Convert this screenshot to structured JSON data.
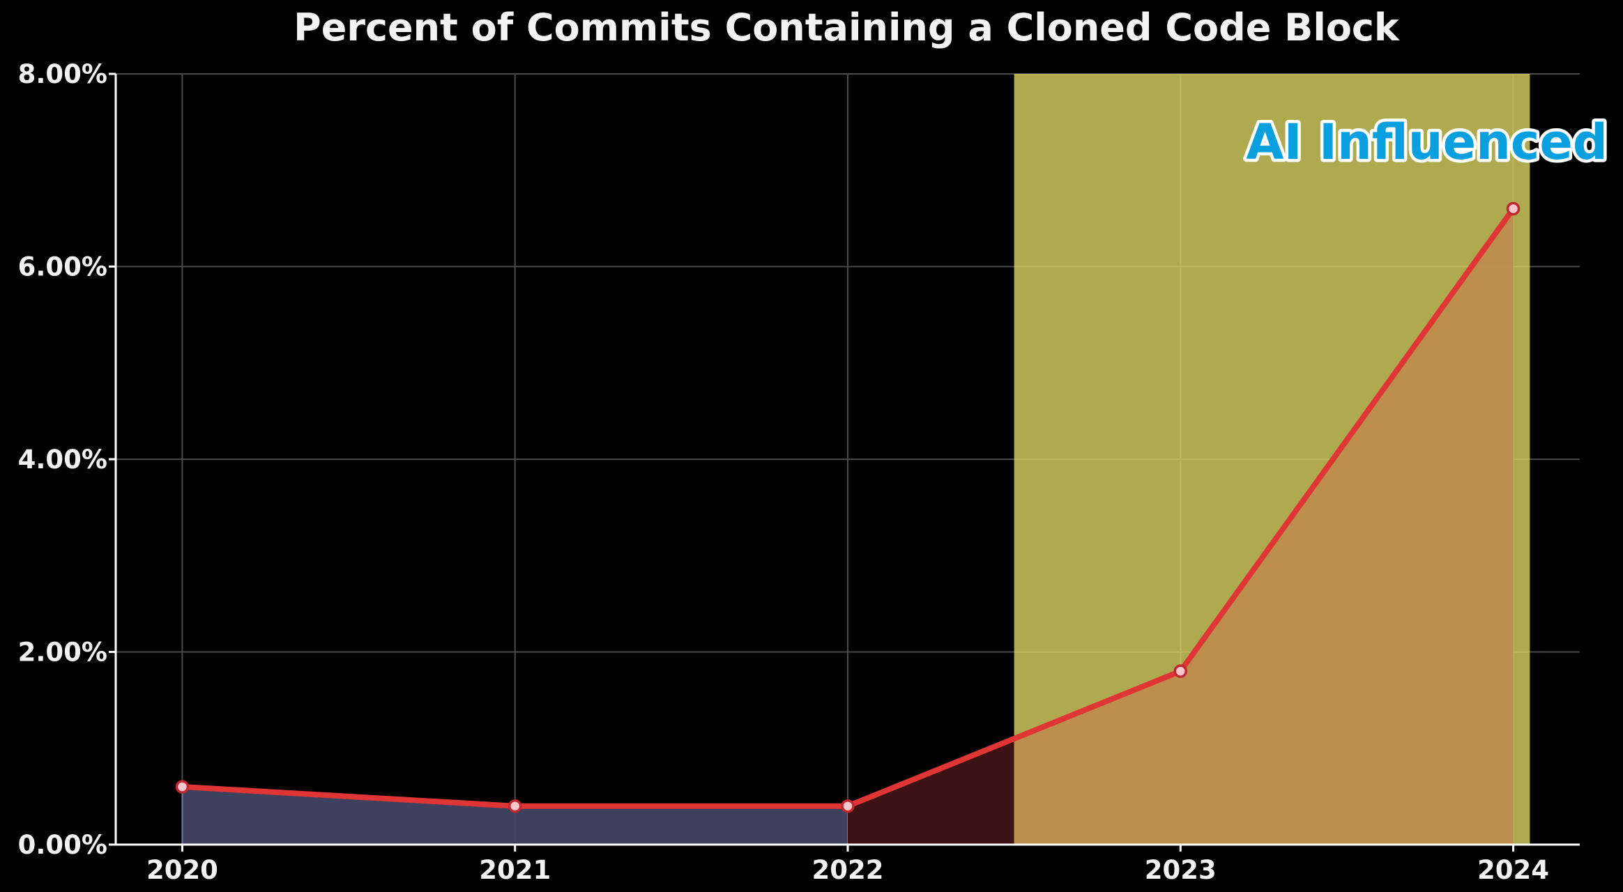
{
  "chart_data": {
    "type": "line",
    "title": "Percent of Commits Containing a Cloned Code Block",
    "xlabel": "",
    "ylabel": "",
    "x": [
      2020,
      2021,
      2022,
      2023,
      2024
    ],
    "x_tick_labels": [
      "2020",
      "2021",
      "2022",
      "2023",
      "2024"
    ],
    "series": [
      {
        "values": [
          0.6,
          0.4,
          0.4,
          1.8,
          6.6
        ],
        "color": "#e03535"
      }
    ],
    "ylim": [
      0,
      8
    ],
    "xlim": [
      2019.8,
      2024.2
    ],
    "y_ticks": [
      0,
      2,
      4,
      6,
      8
    ],
    "y_tick_labels": [
      "0.00%",
      "2.00%",
      "4.00%",
      "6.00%",
      "8.00%"
    ],
    "grid": true,
    "highlight_region": {
      "x_start": 2022.5,
      "x_end": 2024.05,
      "color": "#d6d060"
    },
    "annotation": {
      "text": "AI Influenced",
      "color": "#0aa0e0"
    },
    "colors": {
      "background": "#000000",
      "pre_ai_fill": "#414462",
      "transition_fill": "#3c1214",
      "ai_fill": "#be8c4e",
      "marker_fill": "#f6c6cc"
    }
  }
}
